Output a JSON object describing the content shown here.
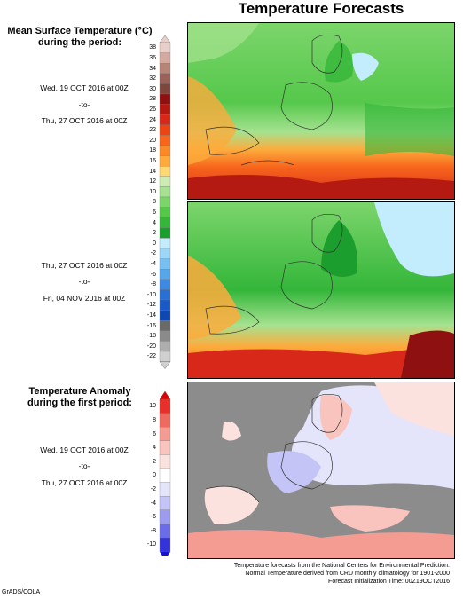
{
  "page_title": "Temperature Forecasts",
  "mean_temp": {
    "title_line1": "Mean Surface Temperature (°C)",
    "title_line2": "during the period:",
    "period1": {
      "start": "Wed, 19 OCT 2016 at 00Z",
      "sep": "-to-",
      "end": "Thu, 27 OCT 2016 at 00Z"
    },
    "period2": {
      "start": "Thu, 27 OCT 2016 at 00Z",
      "sep": "-to-",
      "end": "Fri, 04 NOV 2016 at 00Z"
    },
    "levels": [
      "38",
      "36",
      "34",
      "32",
      "30",
      "28",
      "26",
      "24",
      "22",
      "20",
      "18",
      "16",
      "14",
      "12",
      "10",
      "8",
      "6",
      "4",
      "2",
      "0",
      "-2",
      "-4",
      "-6",
      "-8",
      "-10",
      "-12",
      "-14",
      "-16",
      "-18",
      "-20",
      "-22"
    ],
    "colors": [
      "#e9cfc9",
      "#d4aaa0",
      "#b78478",
      "#9a6258",
      "#7e463d",
      "#8f1010",
      "#b41a12",
      "#d8281a",
      "#ec4412",
      "#f7661c",
      "#fb8a26",
      "#fdab3c",
      "#fed872",
      "#cdebb2",
      "#a6e290",
      "#7cd56b",
      "#55c84b",
      "#34b63a",
      "#1c9e2e",
      "#c3ecfc",
      "#9dd7f8",
      "#79c0f2",
      "#58a6ea",
      "#3e8ae0",
      "#2a70d4",
      "#1a59c6",
      "#1048b2",
      "#6a6a6a",
      "#8a8a8a",
      "#aeaeae",
      "#d0d0d0"
    ]
  },
  "anomaly": {
    "title_line1": "Temperature Anomaly",
    "title_line2": "during the first period:",
    "start": "Wed, 19 OCT 2016 at 00Z",
    "sep": "-to-",
    "end": "Thu, 27 OCT 2016 at 00Z",
    "levels": [
      "10",
      "8",
      "6",
      "4",
      "2",
      "0",
      "-2",
      "-4",
      "-6",
      "-8",
      "-10"
    ],
    "colors": [
      "#e8302a",
      "#ef6a5e",
      "#f59c92",
      "#f9c4bd",
      "#fce2de",
      "#ffffff",
      "#e4e4fb",
      "#c4c4f6",
      "#9c9cee",
      "#6c6ce6",
      "#3434d8"
    ],
    "top_arrow_color": "#e00000",
    "bottom_arrow_color": "#1414d0"
  },
  "footer": {
    "line1": "Temperature forecasts from the National Centers for Environmental Prediction.",
    "line2": "Normal Temperature derived from CRU monthly climatology for 1901-2000",
    "line3": "Forecast Initialization Time: 00Z19OCT2016"
  },
  "credit": "GrADS/COLA"
}
